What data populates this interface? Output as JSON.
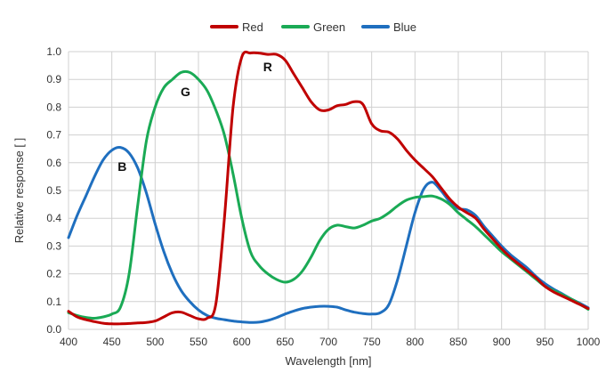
{
  "chart_data": {
    "type": "line",
    "title": "",
    "xlabel": "Wavelength [nm]",
    "ylabel": "Relative response [ ]",
    "xlim": [
      400,
      1000
    ],
    "ylim": [
      0,
      1.0
    ],
    "x_ticks": [
      "400",
      "450",
      "500",
      "550",
      "600",
      "650",
      "700",
      "750",
      "800",
      "850",
      "900",
      "950",
      "1000"
    ],
    "y_ticks": [
      "0.0",
      "0.1",
      "0.2",
      "0.3",
      "0.4",
      "0.5",
      "0.6",
      "0.7",
      "0.8",
      "0.9",
      "1.0"
    ],
    "grid": true,
    "legend_position": "top-center",
    "series": [
      {
        "name": "Red",
        "color": "#c00000",
        "points": [
          [
            400,
            0.065
          ],
          [
            410,
            0.045
          ],
          [
            420,
            0.035
          ],
          [
            430,
            0.028
          ],
          [
            440,
            0.022
          ],
          [
            450,
            0.02
          ],
          [
            460,
            0.02
          ],
          [
            470,
            0.021
          ],
          [
            480,
            0.023
          ],
          [
            490,
            0.025
          ],
          [
            500,
            0.03
          ],
          [
            510,
            0.045
          ],
          [
            520,
            0.06
          ],
          [
            530,
            0.062
          ],
          [
            540,
            0.05
          ],
          [
            550,
            0.038
          ],
          [
            560,
            0.04
          ],
          [
            570,
            0.09
          ],
          [
            580,
            0.4
          ],
          [
            590,
            0.8
          ],
          [
            600,
            0.98
          ],
          [
            610,
            0.995
          ],
          [
            620,
            0.995
          ],
          [
            630,
            0.99
          ],
          [
            640,
            0.99
          ],
          [
            650,
            0.97
          ],
          [
            660,
            0.92
          ],
          [
            670,
            0.87
          ],
          [
            680,
            0.82
          ],
          [
            690,
            0.79
          ],
          [
            700,
            0.79
          ],
          [
            710,
            0.805
          ],
          [
            720,
            0.81
          ],
          [
            730,
            0.82
          ],
          [
            740,
            0.81
          ],
          [
            750,
            0.74
          ],
          [
            760,
            0.715
          ],
          [
            770,
            0.71
          ],
          [
            780,
            0.685
          ],
          [
            790,
            0.645
          ],
          [
            800,
            0.61
          ],
          [
            810,
            0.58
          ],
          [
            820,
            0.55
          ],
          [
            830,
            0.51
          ],
          [
            840,
            0.47
          ],
          [
            850,
            0.44
          ],
          [
            860,
            0.42
          ],
          [
            870,
            0.4
          ],
          [
            880,
            0.36
          ],
          [
            890,
            0.325
          ],
          [
            900,
            0.29
          ],
          [
            910,
            0.26
          ],
          [
            920,
            0.235
          ],
          [
            930,
            0.21
          ],
          [
            940,
            0.185
          ],
          [
            950,
            0.155
          ],
          [
            960,
            0.135
          ],
          [
            970,
            0.12
          ],
          [
            980,
            0.105
          ],
          [
            990,
            0.09
          ],
          [
            1000,
            0.075
          ]
        ]
      },
      {
        "name": "Green",
        "color": "#1aaa55",
        "points": [
          [
            400,
            0.06
          ],
          [
            410,
            0.05
          ],
          [
            420,
            0.043
          ],
          [
            430,
            0.04
          ],
          [
            440,
            0.045
          ],
          [
            450,
            0.055
          ],
          [
            460,
            0.08
          ],
          [
            470,
            0.2
          ],
          [
            480,
            0.45
          ],
          [
            490,
            0.68
          ],
          [
            500,
            0.8
          ],
          [
            510,
            0.87
          ],
          [
            520,
            0.9
          ],
          [
            530,
            0.925
          ],
          [
            540,
            0.925
          ],
          [
            550,
            0.9
          ],
          [
            560,
            0.86
          ],
          [
            570,
            0.79
          ],
          [
            580,
            0.7
          ],
          [
            590,
            0.56
          ],
          [
            600,
            0.4
          ],
          [
            610,
            0.28
          ],
          [
            620,
            0.23
          ],
          [
            630,
            0.2
          ],
          [
            640,
            0.18
          ],
          [
            650,
            0.17
          ],
          [
            660,
            0.18
          ],
          [
            670,
            0.21
          ],
          [
            680,
            0.26
          ],
          [
            690,
            0.32
          ],
          [
            700,
            0.36
          ],
          [
            710,
            0.375
          ],
          [
            720,
            0.37
          ],
          [
            730,
            0.365
          ],
          [
            740,
            0.375
          ],
          [
            750,
            0.39
          ],
          [
            760,
            0.4
          ],
          [
            770,
            0.42
          ],
          [
            780,
            0.445
          ],
          [
            790,
            0.465
          ],
          [
            800,
            0.475
          ],
          [
            810,
            0.478
          ],
          [
            820,
            0.48
          ],
          [
            830,
            0.47
          ],
          [
            840,
            0.45
          ],
          [
            850,
            0.42
          ],
          [
            860,
            0.395
          ],
          [
            870,
            0.37
          ],
          [
            880,
            0.34
          ],
          [
            890,
            0.31
          ],
          [
            900,
            0.28
          ],
          [
            910,
            0.255
          ],
          [
            920,
            0.23
          ],
          [
            930,
            0.205
          ],
          [
            940,
            0.18
          ],
          [
            950,
            0.155
          ],
          [
            960,
            0.14
          ],
          [
            970,
            0.125
          ],
          [
            980,
            0.11
          ],
          [
            990,
            0.092
          ],
          [
            1000,
            0.072
          ]
        ]
      },
      {
        "name": "Blue",
        "color": "#1f6fbf",
        "points": [
          [
            400,
            0.33
          ],
          [
            410,
            0.41
          ],
          [
            420,
            0.48
          ],
          [
            430,
            0.55
          ],
          [
            440,
            0.61
          ],
          [
            450,
            0.645
          ],
          [
            460,
            0.655
          ],
          [
            470,
            0.635
          ],
          [
            480,
            0.58
          ],
          [
            490,
            0.49
          ],
          [
            500,
            0.38
          ],
          [
            510,
            0.28
          ],
          [
            520,
            0.2
          ],
          [
            530,
            0.14
          ],
          [
            540,
            0.1
          ],
          [
            550,
            0.07
          ],
          [
            560,
            0.05
          ],
          [
            570,
            0.04
          ],
          [
            580,
            0.035
          ],
          [
            590,
            0.03
          ],
          [
            600,
            0.027
          ],
          [
            610,
            0.025
          ],
          [
            620,
            0.026
          ],
          [
            630,
            0.032
          ],
          [
            640,
            0.042
          ],
          [
            650,
            0.055
          ],
          [
            660,
            0.066
          ],
          [
            670,
            0.075
          ],
          [
            680,
            0.08
          ],
          [
            690,
            0.083
          ],
          [
            700,
            0.083
          ],
          [
            710,
            0.08
          ],
          [
            720,
            0.07
          ],
          [
            730,
            0.062
          ],
          [
            740,
            0.057
          ],
          [
            750,
            0.055
          ],
          [
            760,
            0.06
          ],
          [
            770,
            0.09
          ],
          [
            780,
            0.18
          ],
          [
            790,
            0.3
          ],
          [
            800,
            0.42
          ],
          [
            810,
            0.505
          ],
          [
            820,
            0.53
          ],
          [
            830,
            0.5
          ],
          [
            840,
            0.46
          ],
          [
            850,
            0.435
          ],
          [
            860,
            0.43
          ],
          [
            870,
            0.41
          ],
          [
            880,
            0.37
          ],
          [
            890,
            0.335
          ],
          [
            900,
            0.3
          ],
          [
            910,
            0.27
          ],
          [
            920,
            0.245
          ],
          [
            930,
            0.22
          ],
          [
            940,
            0.19
          ],
          [
            950,
            0.165
          ],
          [
            960,
            0.145
          ],
          [
            970,
            0.128
          ],
          [
            980,
            0.11
          ],
          [
            990,
            0.095
          ],
          [
            1000,
            0.078
          ]
        ]
      }
    ],
    "annotations": [
      {
        "text": "R",
        "x": 630,
        "y": 0.93
      },
      {
        "text": "G",
        "x": 535,
        "y": 0.84
      },
      {
        "text": "B",
        "x": 462,
        "y": 0.57
      }
    ]
  }
}
